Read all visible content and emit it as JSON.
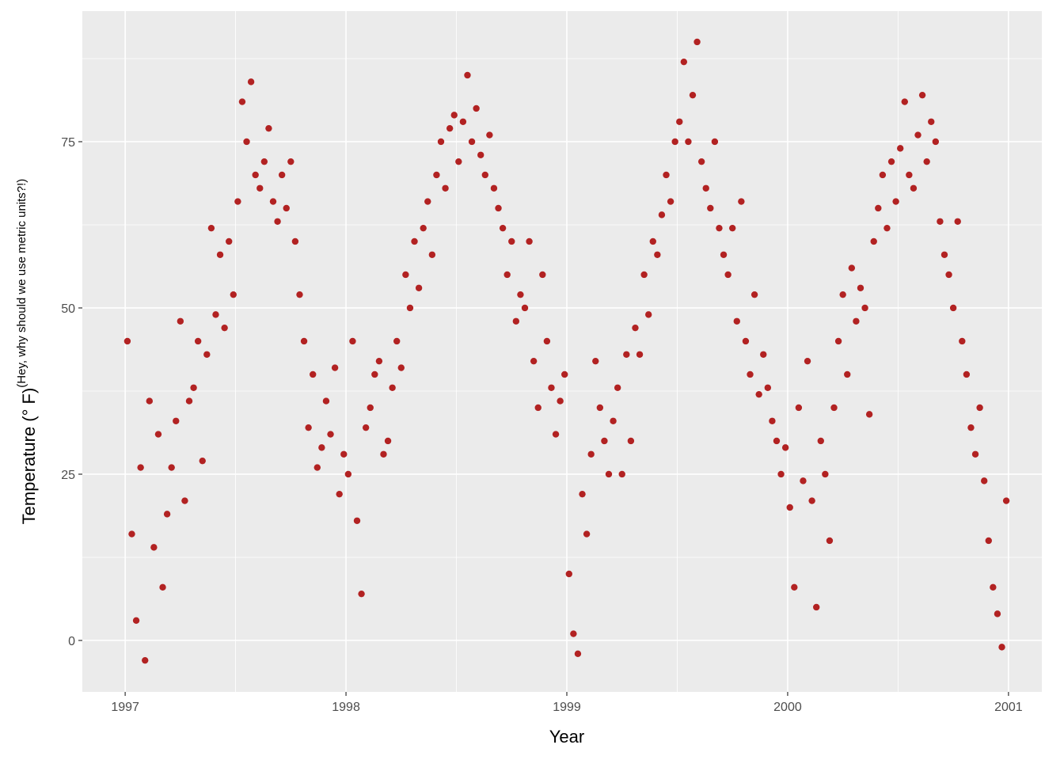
{
  "chart_data": {
    "type": "scatter",
    "x_label": "Year",
    "y_label": "Temperature (° F)",
    "y_label_superscript": "(Hey, why should we use metric units?!)",
    "color": "#b22222",
    "xlim": [
      1996.806,
      2001.151
    ],
    "ylim": [
      -7.74,
      94.64
    ],
    "xticks": [
      1997,
      1998,
      1999,
      2000,
      2001
    ],
    "yticks": [
      0,
      25,
      50,
      75
    ],
    "x_minor": [
      1997.5,
      1998.5,
      1999.5,
      2000.5
    ],
    "y_minor": [
      12.5,
      37.5,
      62.5,
      87.5
    ],
    "grid": true,
    "x": [
      1997.01,
      1997.03,
      1997.05,
      1997.07,
      1997.09,
      1997.11,
      1997.13,
      1997.15,
      1997.17,
      1997.19,
      1997.21,
      1997.23,
      1997.25,
      1997.27,
      1997.29,
      1997.31,
      1997.33,
      1997.35,
      1997.37,
      1997.39,
      1997.41,
      1997.43,
      1997.45,
      1997.47,
      1997.49,
      1997.51,
      1997.53,
      1997.55,
      1997.57,
      1997.59,
      1997.61,
      1997.63,
      1997.65,
      1997.67,
      1997.69,
      1997.71,
      1997.73,
      1997.75,
      1997.77,
      1997.79,
      1997.81,
      1997.83,
      1997.85,
      1997.87,
      1997.89,
      1997.91,
      1997.93,
      1997.95,
      1997.97,
      1997.99,
      1998.01,
      1998.03,
      1998.05,
      1998.07,
      1998.09,
      1998.11,
      1998.13,
      1998.15,
      1998.17,
      1998.19,
      1998.21,
      1998.23,
      1998.25,
      1998.27,
      1998.29,
      1998.31,
      1998.33,
      1998.35,
      1998.37,
      1998.39,
      1998.41,
      1998.43,
      1998.45,
      1998.47,
      1998.49,
      1998.51,
      1998.53,
      1998.55,
      1998.57,
      1998.59,
      1998.61,
      1998.63,
      1998.65,
      1998.67,
      1998.69,
      1998.71,
      1998.73,
      1998.75,
      1998.77,
      1998.79,
      1998.81,
      1998.83,
      1998.85,
      1998.87,
      1998.89,
      1998.91,
      1998.93,
      1998.95,
      1998.97,
      1998.99,
      1999.01,
      1999.03,
      1999.05,
      1999.07,
      1999.09,
      1999.11,
      1999.13,
      1999.15,
      1999.17,
      1999.19,
      1999.21,
      1999.23,
      1999.25,
      1999.27,
      1999.29,
      1999.31,
      1999.33,
      1999.35,
      1999.37,
      1999.39,
      1999.41,
      1999.43,
      1999.45,
      1999.47,
      1999.49,
      1999.51,
      1999.53,
      1999.55,
      1999.57,
      1999.59,
      1999.61,
      1999.63,
      1999.65,
      1999.67,
      1999.69,
      1999.71,
      1999.73,
      1999.75,
      1999.77,
      1999.79,
      1999.81,
      1999.83,
      1999.85,
      1999.87,
      1999.89,
      1999.91,
      1999.93,
      1999.95,
      1999.97,
      1999.99,
      2000.01,
      2000.03,
      2000.05,
      2000.07,
      2000.09,
      2000.11,
      2000.13,
      2000.15,
      2000.17,
      2000.19,
      2000.21,
      2000.23,
      2000.25,
      2000.27,
      2000.29,
      2000.31,
      2000.33,
      2000.35,
      2000.37,
      2000.39,
      2000.41,
      2000.43,
      2000.45,
      2000.47,
      2000.49,
      2000.51,
      2000.53,
      2000.55,
      2000.57,
      2000.59,
      2000.61,
      2000.63,
      2000.65,
      2000.67,
      2000.69,
      2000.71,
      2000.73,
      2000.75,
      2000.77,
      2000.79,
      2000.81,
      2000.83,
      2000.85,
      2000.87,
      2000.89,
      2000.91,
      2000.93,
      2000.95,
      2000.97,
      2000.99
    ],
    "values": [
      45,
      16,
      3,
      26,
      -3,
      36,
      14,
      31,
      8,
      19,
      26,
      33,
      48,
      21,
      36,
      38,
      45,
      27,
      43,
      62,
      49,
      58,
      47,
      60,
      52,
      66,
      81,
      75,
      84,
      70,
      68,
      72,
      77,
      66,
      63,
      70,
      65,
      72,
      60,
      52,
      45,
      32,
      40,
      26,
      29,
      36,
      31,
      41,
      22,
      28,
      25,
      45,
      18,
      7,
      32,
      35,
      40,
      42,
      28,
      30,
      38,
      45,
      41,
      55,
      50,
      60,
      53,
      62,
      66,
      58,
      70,
      75,
      68,
      77,
      79,
      72,
      78,
      85,
      75,
      80,
      73,
      70,
      76,
      68,
      65,
      62,
      55,
      60,
      48,
      52,
      50,
      60,
      42,
      35,
      55,
      45,
      38,
      31,
      36,
      40,
      10,
      1,
      -2,
      22,
      16,
      28,
      42,
      35,
      30,
      25,
      33,
      38,
      25,
      43,
      30,
      47,
      43,
      55,
      49,
      60,
      58,
      64,
      70,
      66,
      75,
      78,
      87,
      75,
      82,
      90,
      72,
      68,
      65,
      75,
      62,
      58,
      55,
      62,
      48,
      66,
      45,
      40,
      52,
      37,
      43,
      38,
      33,
      30,
      25,
      29,
      20,
      8,
      35,
      24,
      42,
      21,
      5,
      30,
      25,
      15,
      35,
      45,
      52,
      40,
      56,
      48,
      53,
      50,
      34,
      60,
      65,
      70,
      62,
      72,
      66,
      74,
      81,
      70,
      68,
      76,
      82,
      72,
      78,
      75,
      63,
      58,
      55,
      50,
      63,
      45,
      40,
      32,
      28,
      35,
      24,
      15,
      8,
      4,
      -1,
      21
    ]
  }
}
